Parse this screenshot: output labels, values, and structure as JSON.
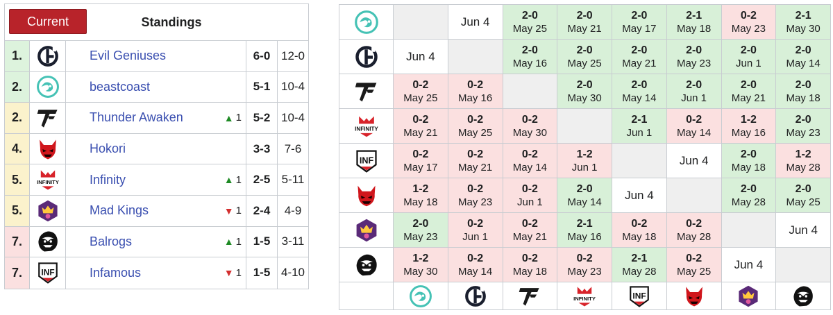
{
  "standings": {
    "current_button": "Current",
    "title": "Standings",
    "rows": [
      {
        "rank": "1.",
        "team": "Evil Geniuses",
        "logo": "evil-geniuses-logo",
        "change": "",
        "change_dir": "",
        "matches": "6-0",
        "games": "12-0",
        "tier": "up"
      },
      {
        "rank": "2.",
        "team": "beastcoast",
        "logo": "beastcoast-logo",
        "change": "",
        "change_dir": "",
        "matches": "5-1",
        "games": "10-4",
        "tier": "up"
      },
      {
        "rank": "2.",
        "team": "Thunder Awaken",
        "logo": "thunder-awaken-logo",
        "change": "1",
        "change_dir": "up",
        "matches": "5-2",
        "games": "10-4",
        "tier": "mid"
      },
      {
        "rank": "4.",
        "team": "Hokori",
        "logo": "hokori-logo",
        "change": "",
        "change_dir": "",
        "matches": "3-3",
        "games": "7-6",
        "tier": "mid"
      },
      {
        "rank": "5.",
        "team": "Infinity",
        "logo": "infinity-logo",
        "change": "1",
        "change_dir": "up",
        "matches": "2-5",
        "games": "5-11",
        "tier": "mid"
      },
      {
        "rank": "5.",
        "team": "Mad Kings",
        "logo": "mad-kings-logo",
        "change": "1",
        "change_dir": "down",
        "matches": "2-4",
        "games": "4-9",
        "tier": "mid"
      },
      {
        "rank": "7.",
        "team": "Balrogs",
        "logo": "balrogs-logo",
        "change": "1",
        "change_dir": "up",
        "matches": "1-5",
        "games": "3-11",
        "tier": "dn"
      },
      {
        "rank": "7.",
        "team": "Infamous",
        "logo": "infamous-logo",
        "change": "1",
        "change_dir": "down",
        "matches": "1-5",
        "games": "4-10",
        "tier": "dn"
      }
    ]
  },
  "crosstable": {
    "row_logos": [
      "beastcoast-logo",
      "evil-geniuses-logo",
      "thunder-awaken-logo",
      "infinity-logo",
      "infamous-logo",
      "hokori-logo",
      "mad-kings-logo",
      "balrogs-logo"
    ],
    "col_logos": [
      "beastcoast-logo",
      "evil-geniuses-logo",
      "thunder-awaken-logo",
      "infinity-logo",
      "infamous-logo",
      "hokori-logo",
      "mad-kings-logo",
      "balrogs-logo"
    ],
    "rows": [
      [
        {
          "t": "x"
        },
        {
          "t": "f",
          "date": "Jun 4"
        },
        {
          "t": "w",
          "score": "2-0",
          "date": "May 25"
        },
        {
          "t": "w",
          "score": "2-0",
          "date": "May 21"
        },
        {
          "t": "w",
          "score": "2-0",
          "date": "May 17"
        },
        {
          "t": "w",
          "score": "2-1",
          "date": "May 18"
        },
        {
          "t": "l",
          "score": "0-2",
          "date": "May 23"
        },
        {
          "t": "w",
          "score": "2-1",
          "date": "May 30"
        }
      ],
      [
        {
          "t": "f",
          "date": "Jun 4"
        },
        {
          "t": "x"
        },
        {
          "t": "w",
          "score": "2-0",
          "date": "May 16"
        },
        {
          "t": "w",
          "score": "2-0",
          "date": "May 25"
        },
        {
          "t": "w",
          "score": "2-0",
          "date": "May 21"
        },
        {
          "t": "w",
          "score": "2-0",
          "date": "May 23"
        },
        {
          "t": "w",
          "score": "2-0",
          "date": "Jun 1"
        },
        {
          "t": "w",
          "score": "2-0",
          "date": "May 14"
        }
      ],
      [
        {
          "t": "l",
          "score": "0-2",
          "date": "May 25"
        },
        {
          "t": "l",
          "score": "0-2",
          "date": "May 16"
        },
        {
          "t": "x"
        },
        {
          "t": "w",
          "score": "2-0",
          "date": "May 30"
        },
        {
          "t": "w",
          "score": "2-0",
          "date": "May 14"
        },
        {
          "t": "w",
          "score": "2-0",
          "date": "Jun 1"
        },
        {
          "t": "w",
          "score": "2-0",
          "date": "May 21"
        },
        {
          "t": "w",
          "score": "2-0",
          "date": "May 18"
        }
      ],
      [
        {
          "t": "l",
          "score": "0-2",
          "date": "May 21"
        },
        {
          "t": "l",
          "score": "0-2",
          "date": "May 25"
        },
        {
          "t": "l",
          "score": "0-2",
          "date": "May 30"
        },
        {
          "t": "x"
        },
        {
          "t": "w",
          "score": "2-1",
          "date": "Jun 1"
        },
        {
          "t": "l",
          "score": "0-2",
          "date": "May 14"
        },
        {
          "t": "l",
          "score": "1-2",
          "date": "May 16"
        },
        {
          "t": "w",
          "score": "2-0",
          "date": "May 23"
        }
      ],
      [
        {
          "t": "l",
          "score": "0-2",
          "date": "May 17"
        },
        {
          "t": "l",
          "score": "0-2",
          "date": "May 21"
        },
        {
          "t": "l",
          "score": "0-2",
          "date": "May 14"
        },
        {
          "t": "l",
          "score": "1-2",
          "date": "Jun 1"
        },
        {
          "t": "x"
        },
        {
          "t": "f",
          "date": "Jun 4"
        },
        {
          "t": "w",
          "score": "2-0",
          "date": "May 18"
        },
        {
          "t": "l",
          "score": "1-2",
          "date": "May 28"
        }
      ],
      [
        {
          "t": "l",
          "score": "1-2",
          "date": "May 18"
        },
        {
          "t": "l",
          "score": "0-2",
          "date": "May 23"
        },
        {
          "t": "l",
          "score": "0-2",
          "date": "Jun 1"
        },
        {
          "t": "w",
          "score": "2-0",
          "date": "May 14"
        },
        {
          "t": "f",
          "date": "Jun 4"
        },
        {
          "t": "x"
        },
        {
          "t": "w",
          "score": "2-0",
          "date": "May 28"
        },
        {
          "t": "w",
          "score": "2-0",
          "date": "May 25"
        }
      ],
      [
        {
          "t": "w",
          "score": "2-0",
          "date": "May 23"
        },
        {
          "t": "l",
          "score": "0-2",
          "date": "Jun 1"
        },
        {
          "t": "l",
          "score": "0-2",
          "date": "May 21"
        },
        {
          "t": "w",
          "score": "2-1",
          "date": "May 16"
        },
        {
          "t": "l",
          "score": "0-2",
          "date": "May 18"
        },
        {
          "t": "l",
          "score": "0-2",
          "date": "May 28"
        },
        {
          "t": "x"
        },
        {
          "t": "f",
          "date": "Jun 4"
        }
      ],
      [
        {
          "t": "l",
          "score": "1-2",
          "date": "May 30"
        },
        {
          "t": "l",
          "score": "0-2",
          "date": "May 14"
        },
        {
          "t": "l",
          "score": "0-2",
          "date": "May 18"
        },
        {
          "t": "l",
          "score": "0-2",
          "date": "May 23"
        },
        {
          "t": "w",
          "score": "2-1",
          "date": "May 28"
        },
        {
          "t": "l",
          "score": "0-2",
          "date": "May 25"
        },
        {
          "t": "f",
          "date": "Jun 4"
        },
        {
          "t": "x"
        }
      ]
    ]
  },
  "colors": {
    "accent_button": "#b8232a",
    "win": "#d8f0d8",
    "loss": "#fbe0e0",
    "empty": "#efefef",
    "up_row": "#ddf3dd",
    "mid_row": "#fbf2cc",
    "down_row": "#fbe0e0",
    "link": "#3a4fb0",
    "arrow_up": "#1e8a24",
    "arrow_down": "#d32f2f"
  },
  "logo_text": {
    "infinity-logo": "INFINITY",
    "infamous-logo": "INF"
  }
}
